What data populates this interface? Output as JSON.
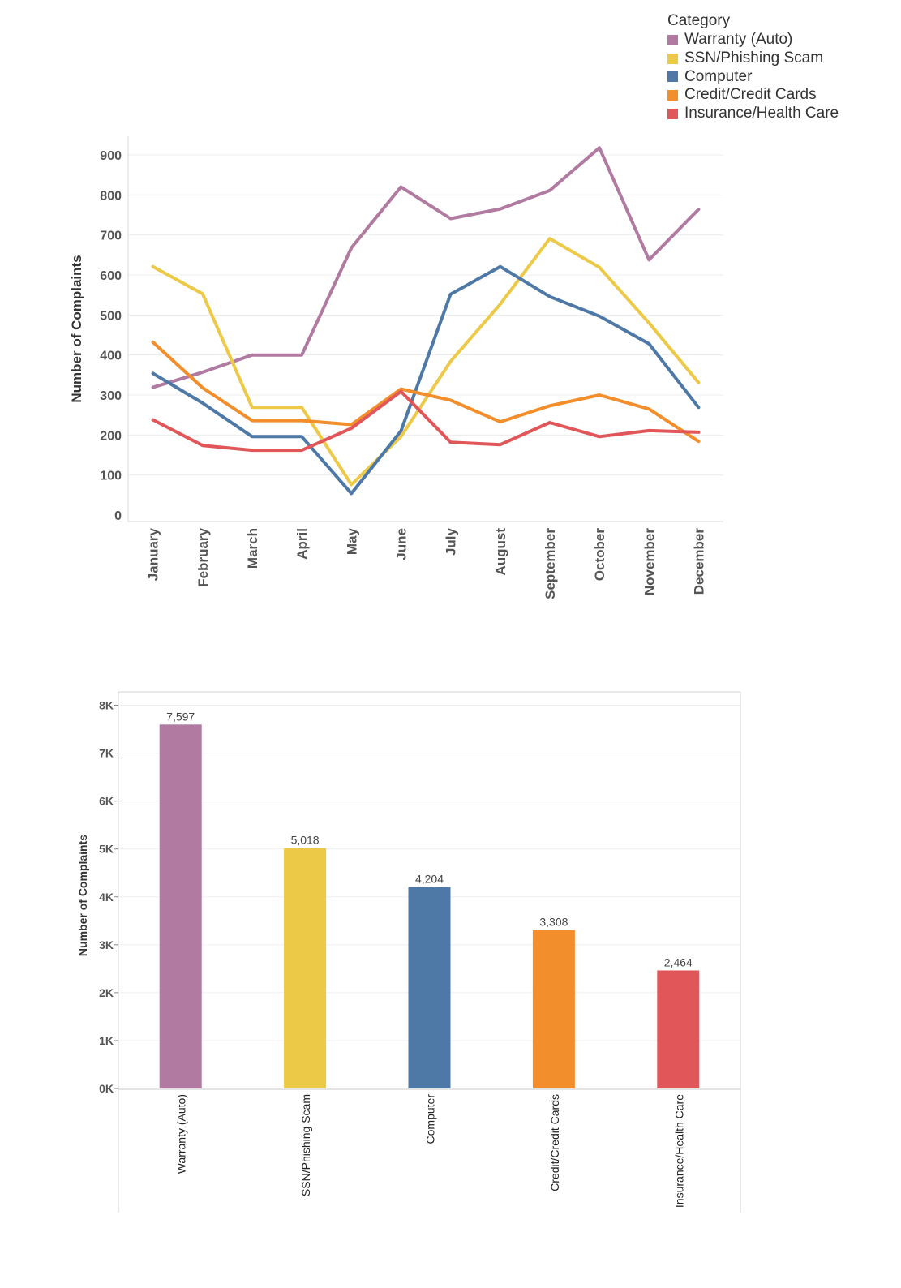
{
  "legend": {
    "title": "Category",
    "items": [
      {
        "label": "Warranty (Auto)",
        "color": "#b07aa1"
      },
      {
        "label": "SSN/Phishing Scam",
        "color": "#edc948"
      },
      {
        "label": "Computer",
        "color": "#4e79a7"
      },
      {
        "label": "Credit/Credit Cards",
        "color": "#f28e2b"
      },
      {
        "label": "Insurance/Health Care",
        "color": "#e15759"
      }
    ]
  },
  "chart_data": [
    {
      "type": "line",
      "ylabel": "Number of Complaints",
      "xlabel": "",
      "ylim": [
        0,
        960
      ],
      "yticks": [
        0,
        100,
        200,
        300,
        400,
        500,
        600,
        700,
        800,
        900
      ],
      "grid": true,
      "legend_placement": "top-right",
      "categories": [
        "January",
        "February",
        "March",
        "April",
        "May",
        "June",
        "July",
        "August",
        "September",
        "October",
        "November",
        "December"
      ],
      "series": [
        {
          "name": "Warranty (Auto)",
          "color": "#b07aa1",
          "values": [
            319,
            357,
            400,
            400,
            668,
            820,
            741,
            765,
            811,
            918,
            638,
            764
          ]
        },
        {
          "name": "SSN/Phishing Scam",
          "color": "#edc948",
          "values": [
            621,
            553,
            269,
            269,
            76,
            196,
            384,
            527,
            691,
            619,
            480,
            331
          ]
        },
        {
          "name": "Computer",
          "color": "#4e79a7",
          "values": [
            354,
            280,
            196,
            196,
            54,
            210,
            552,
            621,
            546,
            497,
            428,
            269
          ]
        },
        {
          "name": "Credit/Credit Cards",
          "color": "#f28e2b",
          "values": [
            432,
            318,
            236,
            236,
            226,
            315,
            287,
            233,
            273,
            300,
            265,
            184
          ]
        },
        {
          "name": "Insurance/Health Care",
          "color": "#e15759",
          "values": [
            238,
            174,
            162,
            162,
            217,
            309,
            182,
            176,
            231,
            196,
            211,
            207
          ]
        }
      ]
    },
    {
      "type": "bar",
      "ylabel": "Number of Complaints",
      "xlabel": "",
      "ylim": [
        0,
        8000
      ],
      "yticks": [
        0,
        1000,
        2000,
        3000,
        4000,
        5000,
        6000,
        7000,
        8000
      ],
      "ytick_labels": [
        "0K",
        "1K",
        "2K",
        "3K",
        "4K",
        "5K",
        "6K",
        "7K",
        "8K"
      ],
      "grid": true,
      "categories": [
        "Warranty (Auto)",
        "SSN/Phishing Scam",
        "Computer",
        "Credit/Credit Cards",
        "Insurance/Health Care"
      ],
      "values": [
        7597,
        5018,
        4204,
        3308,
        2464
      ],
      "value_labels": [
        "7,597",
        "5,018",
        "4,204",
        "3,308",
        "2,464"
      ],
      "colors": [
        "#b07aa1",
        "#edc948",
        "#4e79a7",
        "#f28e2b",
        "#e15759"
      ]
    }
  ]
}
